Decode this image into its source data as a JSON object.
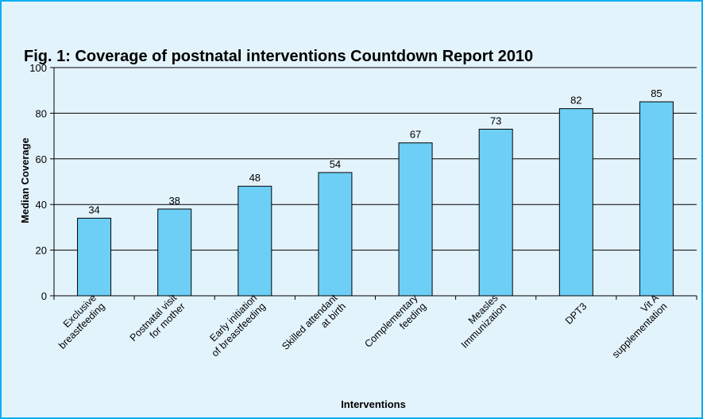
{
  "chart_data": {
    "type": "bar",
    "title": "Fig. 1: Coverage of postnatal interventions Countdown Report 2010",
    "xlabel": "Interventions",
    "ylabel": "Median Coverage",
    "ylim": [
      0,
      100
    ],
    "yticks": [
      0,
      20,
      40,
      60,
      80,
      100
    ],
    "grid": true,
    "categories": [
      [
        "Exclusive",
        "breastfeeding"
      ],
      [
        "Postnatal visit",
        "for mother"
      ],
      [
        "Early initiation",
        "of breastfeeding"
      ],
      [
        "Skilled attendant",
        "at birth"
      ],
      [
        "Complementary",
        "feeding"
      ],
      [
        "Measles",
        "Immunization"
      ],
      [
        "DPT3"
      ],
      [
        "Vit A",
        "supplementation"
      ]
    ],
    "values": [
      34,
      38,
      48,
      54,
      67,
      73,
      82,
      85
    ],
    "colors": {
      "bar": "#6dcff6",
      "bar_edge": "#000000",
      "plot_bg": "#e3f3fc",
      "frame": "#00aeef"
    }
  }
}
